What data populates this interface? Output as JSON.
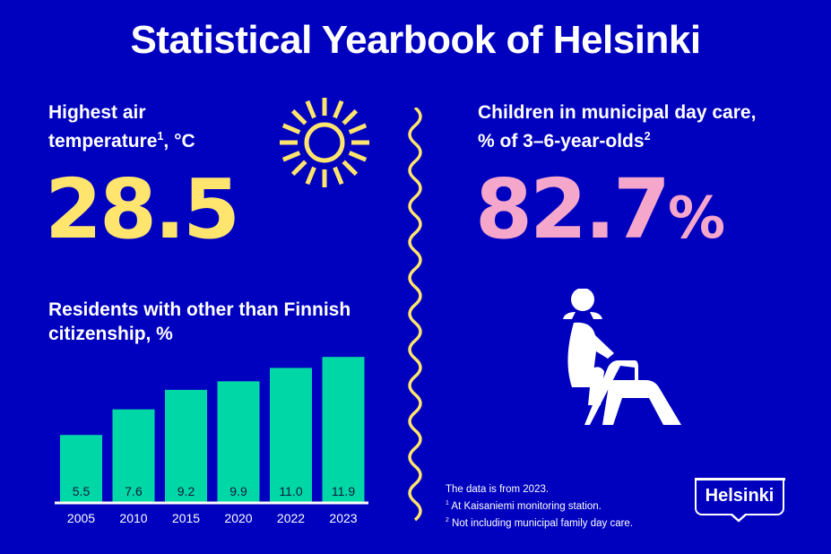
{
  "title": "Statistical Yearbook of Helsinki",
  "temperature": {
    "label_line1": "Highest air",
    "label_line2": "temperature",
    "label_sup": "1",
    "label_unit": ", °C",
    "value": "28.5",
    "icon": "sun-icon"
  },
  "daycare": {
    "label_line1": "Children in municipal day care,",
    "label_line2": "% of 3–6-year-olds",
    "label_sup": "2",
    "value": "82.7",
    "unit": "%",
    "icon": "child-on-slide-icon"
  },
  "citizenship": {
    "label_line1": "Residents with other than Finnish",
    "label_line2": "citizenship, %"
  },
  "notes": {
    "line1": "The data is from 2023.",
    "line2_sup": "1",
    "line2": "At Kaisaniemi monitoring station.",
    "line3_sup": "2",
    "line3": "Not including municipal family day care."
  },
  "logo": "Helsinki",
  "colors": {
    "background": "#0000bf",
    "bars": "#00d7a7",
    "temperature": "#ffe46e",
    "daycare": "#f5a6cb"
  },
  "chart_data": {
    "type": "bar",
    "title": "Residents with other than Finnish citizenship, %",
    "categories": [
      "2005",
      "2010",
      "2015",
      "2020",
      "2022",
      "2023"
    ],
    "values": [
      5.5,
      7.6,
      9.2,
      9.9,
      11.0,
      11.9
    ],
    "value_labels": [
      "5.5",
      "7.6",
      "9.2",
      "9.9",
      "11.0",
      "11.9"
    ],
    "ylim": [
      0,
      12
    ],
    "grid": false
  }
}
